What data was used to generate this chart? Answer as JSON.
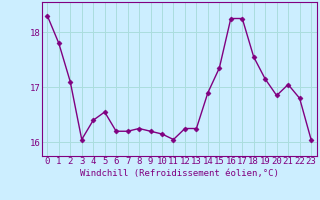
{
  "x": [
    0,
    1,
    2,
    3,
    4,
    5,
    6,
    7,
    8,
    9,
    10,
    11,
    12,
    13,
    14,
    15,
    16,
    17,
    18,
    19,
    20,
    21,
    22,
    23
  ],
  "y": [
    18.3,
    17.8,
    17.1,
    16.05,
    16.4,
    16.55,
    16.2,
    16.2,
    16.25,
    16.2,
    16.15,
    16.05,
    16.25,
    16.25,
    16.9,
    17.35,
    18.25,
    18.25,
    17.55,
    17.15,
    16.85,
    17.05,
    16.8,
    16.05
  ],
  "line_color": "#800080",
  "marker": "D",
  "marker_size": 2.5,
  "bg_color": "#cceeff",
  "grid_color": "#aadddd",
  "xlabel": "Windchill (Refroidissement éolien,°C)",
  "xlabel_fontsize": 6.5,
  "tick_fontsize": 6.5,
  "ylim": [
    15.75,
    18.55
  ],
  "yticks": [
    16,
    17,
    18
  ],
  "xlim": [
    -0.5,
    23.5
  ],
  "linewidth": 1.0
}
